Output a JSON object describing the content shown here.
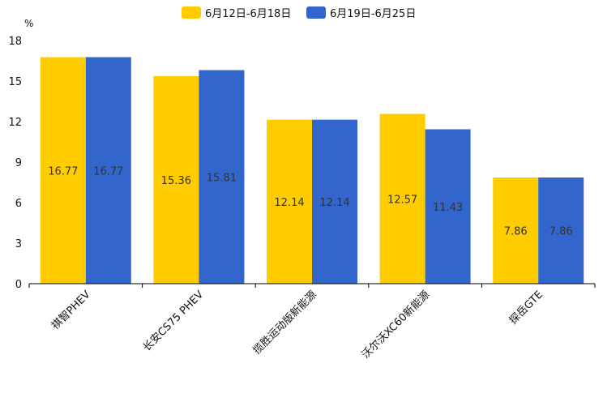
{
  "chart_data": {
    "type": "bar",
    "title": "",
    "xlabel": "",
    "ylabel": "%",
    "ylim": [
      0,
      18
    ],
    "yticks": [
      0,
      3,
      6,
      9,
      12,
      15,
      18
    ],
    "categories": [
      "祺智PHEV",
      "长安CS75 PHEV",
      "揽胜运动版新能源",
      "沃尔沃XC60新能源",
      "探岳GTE"
    ],
    "series": [
      {
        "name": "6月12日-6月18日",
        "color": "#FFCC00",
        "values": [
          16.77,
          15.36,
          12.14,
          12.57,
          7.86
        ]
      },
      {
        "name": "6月19日-6月25日",
        "color": "#3366CC",
        "values": [
          16.77,
          15.81,
          12.14,
          11.43,
          7.86
        ]
      }
    ],
    "legend_position": "top-center",
    "grid": false
  }
}
